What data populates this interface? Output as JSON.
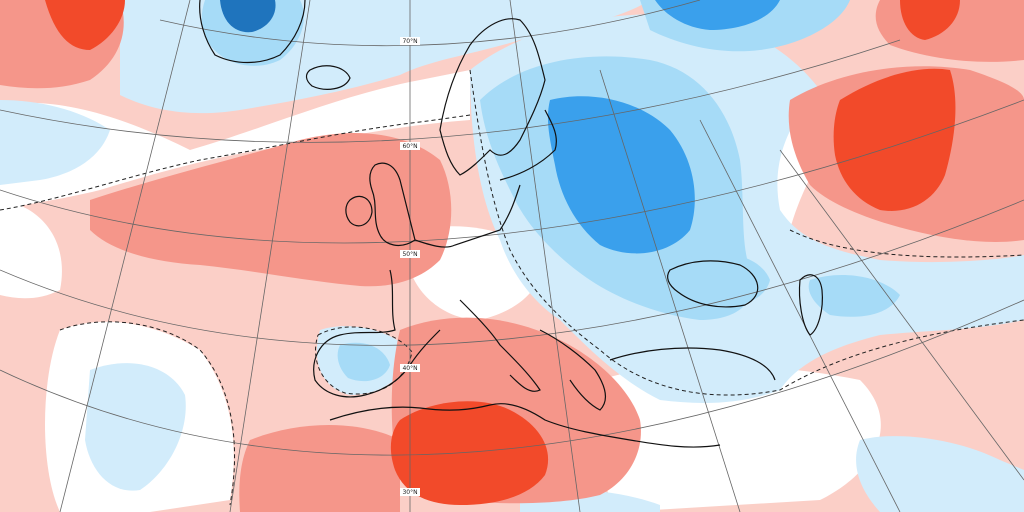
{
  "map": {
    "latitude_labels": [
      "70°N",
      "60°N",
      "50°N",
      "40°N",
      "30°N"
    ],
    "colors": {
      "warm_strong": "#f24a2a",
      "warm_moderate": "#f5968a",
      "warm_light": "#fbcfc7",
      "neutral": "#ffffff",
      "cool_light": "#d2ecfb",
      "cool_moderate": "#a6dbf7",
      "cool_strong": "#3aa0ec",
      "cool_very_strong": "#1f74bd",
      "coastline": "#111111",
      "graticule": "#666666",
      "zero_contour": "#222222"
    }
  }
}
